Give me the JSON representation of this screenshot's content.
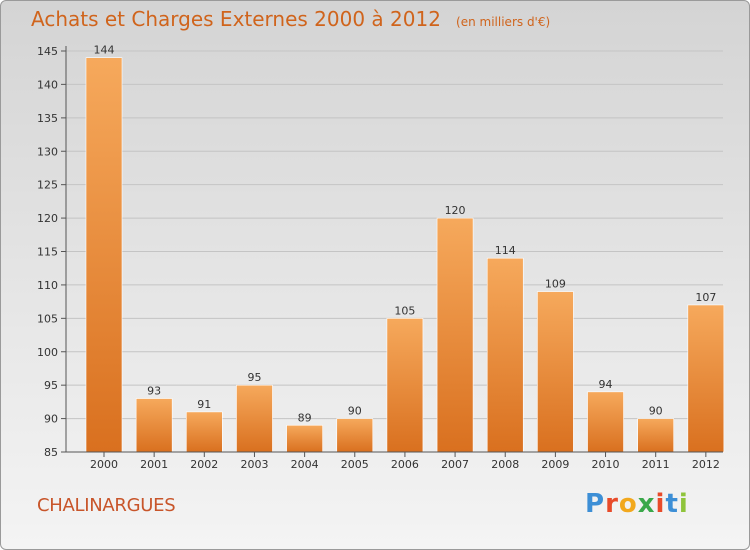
{
  "header": {
    "title": "Achats et Charges Externes 2000 à 2012",
    "unit": "(en milliers d'€)"
  },
  "footer": {
    "commune": "CHALINARGUES",
    "logo_letters": [
      "P",
      "r",
      "o",
      "x",
      "i",
      "t",
      "i"
    ]
  },
  "colors": {
    "bar_light": "#f6a95c",
    "bar_dark": "#d9701f",
    "title": "#d0641c",
    "logo": [
      "#3d8fd6",
      "#e84b2a",
      "#f2a81d",
      "#3aa84a",
      "#e84b2a",
      "#3d8fd6",
      "#8fc43b"
    ]
  },
  "chart_data": {
    "type": "bar",
    "categories": [
      "2000",
      "2001",
      "2002",
      "2003",
      "2004",
      "2005",
      "2006",
      "2007",
      "2008",
      "2009",
      "2010",
      "2011",
      "2012"
    ],
    "values": [
      144,
      93,
      91,
      95,
      89,
      90,
      105,
      120,
      114,
      109,
      94,
      90,
      107
    ],
    "title": "Achats et Charges Externes 2000 à 2012",
    "ylim": [
      85,
      145
    ],
    "yticks": [
      85,
      90,
      95,
      100,
      105,
      110,
      115,
      120,
      125,
      130,
      135,
      140,
      145
    ],
    "grid": true
  }
}
